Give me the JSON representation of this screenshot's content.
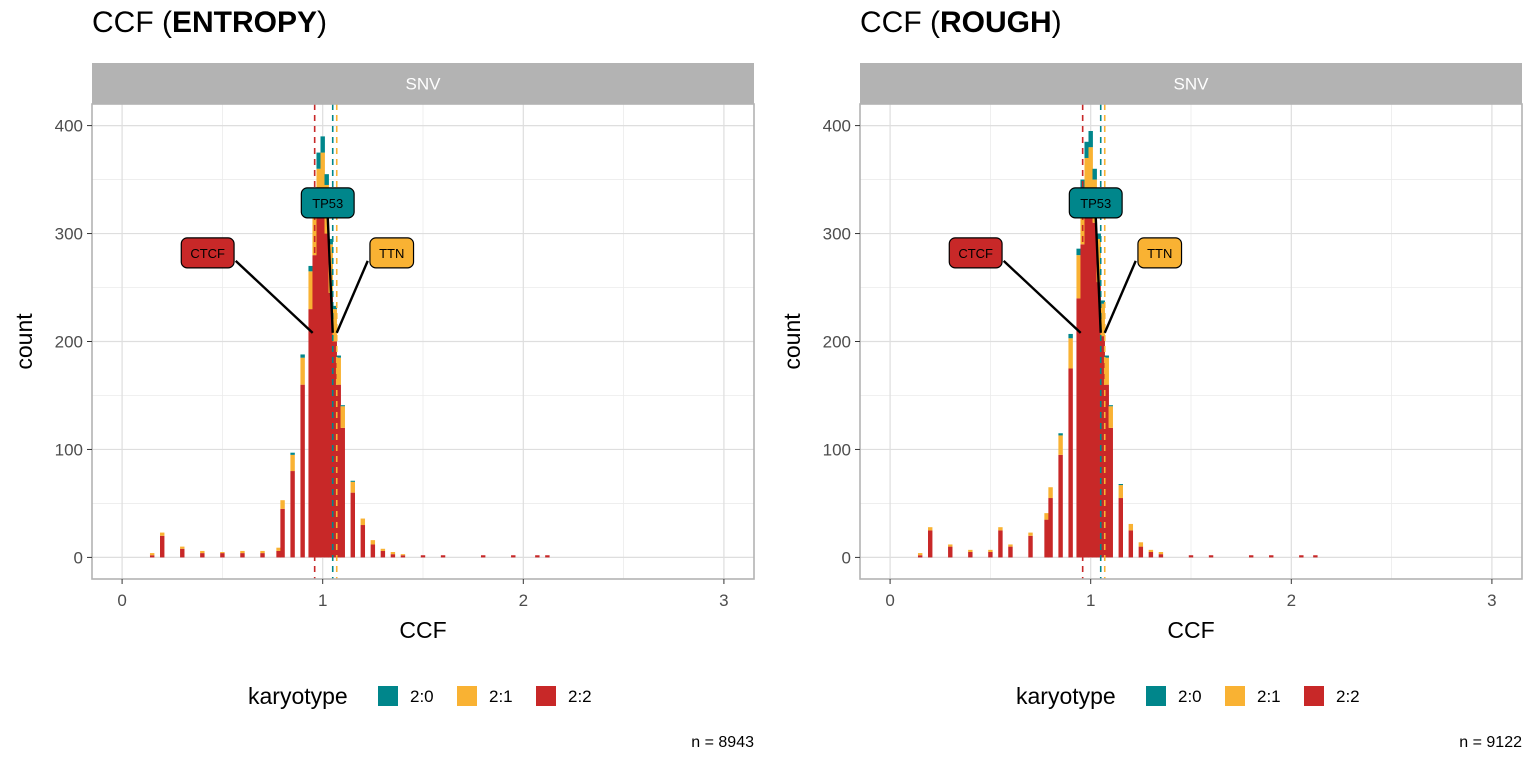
{
  "colors": {
    "2:0": "#00868B",
    "2:1": "#F9B233",
    "2:2": "#C82828",
    "strip": "#B3B3B3",
    "grid": "#EBEBEB",
    "frame": "#B3B3B3"
  },
  "panels": [
    {
      "title_prefix": "CCF (",
      "title_bold": "ENTROPY",
      "title_suffix": ")",
      "footnote": "n = 8943"
    },
    {
      "title_prefix": "CCF (",
      "title_bold": "ROUGH",
      "title_suffix": ")",
      "footnote": "n = 9122"
    }
  ],
  "chart_data": [
    {
      "type": "histogram",
      "title": "CCF (ENTROPY)",
      "facet": "SNV",
      "xlabel": "CCF",
      "ylabel": "count",
      "xlim": [
        -0.15,
        3.15
      ],
      "ylim": [
        -20,
        420
      ],
      "xticks": [
        0,
        1,
        2,
        3
      ],
      "yticks": [
        0,
        100,
        200,
        300,
        400
      ],
      "stacked": true,
      "series_order": [
        "2:2",
        "2:1",
        "2:0"
      ],
      "bin_width": 0.01,
      "bins": {
        "x": [
          0.15,
          0.2,
          0.3,
          0.4,
          0.5,
          0.6,
          0.7,
          0.78,
          0.8,
          0.85,
          0.9,
          0.94,
          0.96,
          0.98,
          1.0,
          1.02,
          1.04,
          1.06,
          1.08,
          1.1,
          1.15,
          1.2,
          1.25,
          1.3,
          1.35,
          1.4,
          1.5,
          1.6,
          1.8,
          1.95,
          2.07,
          2.12
        ],
        "2:2": [
          2,
          20,
          8,
          4,
          4,
          4,
          4,
          6,
          45,
          80,
          160,
          230,
          280,
          320,
          330,
          300,
          245,
          200,
          160,
          120,
          60,
          30,
          12,
          6,
          3,
          2,
          2,
          2,
          2,
          2,
          2,
          2
        ],
        "2:1": [
          2,
          3,
          2,
          2,
          1,
          2,
          2,
          3,
          8,
          15,
          25,
          35,
          50,
          40,
          45,
          45,
          45,
          30,
          25,
          20,
          10,
          6,
          4,
          2,
          2,
          1,
          0,
          0,
          0,
          0,
          0,
          0
        ],
        "2:0": [
          0,
          0,
          0,
          0,
          0,
          0,
          0,
          0,
          0,
          2,
          3,
          5,
          10,
          15,
          15,
          10,
          5,
          3,
          2,
          1,
          1,
          0,
          0,
          0,
          0,
          0,
          0,
          0,
          0,
          0,
          0,
          0
        ]
      },
      "vlines": [
        {
          "karyotype": "2:2",
          "x": 0.96
        },
        {
          "karyotype": "2:0",
          "x": 1.05
        },
        {
          "karyotype": "2:1",
          "x": 1.07
        }
      ],
      "annotations": [
        {
          "label": "CTCF",
          "karyotype": "2:2",
          "x": 0.95,
          "y": 208
        },
        {
          "label": "TP53",
          "karyotype": "2:0",
          "x": 1.05,
          "y": 208
        },
        {
          "label": "TTN",
          "karyotype": "2:1",
          "x": 1.07,
          "y": 208
        }
      ],
      "legend": {
        "title": "karyotype",
        "entries": [
          "2:0",
          "2:1",
          "2:2"
        ],
        "position": "bottom"
      }
    },
    {
      "type": "histogram",
      "title": "CCF (ROUGH)",
      "facet": "SNV",
      "xlabel": "CCF",
      "ylabel": "count",
      "xlim": [
        -0.15,
        3.15
      ],
      "ylim": [
        -20,
        420
      ],
      "xticks": [
        0,
        1,
        2,
        3
      ],
      "yticks": [
        0,
        100,
        200,
        300,
        400
      ],
      "stacked": true,
      "series_order": [
        "2:2",
        "2:1",
        "2:0"
      ],
      "bin_width": 0.01,
      "bins": {
        "x": [
          0.15,
          0.2,
          0.3,
          0.4,
          0.5,
          0.55,
          0.6,
          0.7,
          0.78,
          0.8,
          0.85,
          0.9,
          0.94,
          0.96,
          0.98,
          1.0,
          1.02,
          1.04,
          1.06,
          1.08,
          1.1,
          1.15,
          1.2,
          1.25,
          1.3,
          1.35,
          1.5,
          1.6,
          1.8,
          1.9,
          2.05,
          2.12
        ],
        "2:2": [
          2,
          25,
          10,
          5,
          5,
          25,
          10,
          20,
          35,
          55,
          95,
          175,
          240,
          290,
          330,
          335,
          310,
          255,
          205,
          160,
          120,
          55,
          25,
          10,
          5,
          3,
          2,
          2,
          2,
          2,
          2,
          2
        ],
        "2:1": [
          2,
          3,
          2,
          2,
          2,
          3,
          2,
          3,
          6,
          10,
          18,
          28,
          40,
          50,
          40,
          45,
          40,
          40,
          30,
          25,
          20,
          12,
          6,
          4,
          2,
          2,
          0,
          0,
          0,
          0,
          0,
          0
        ],
        "2:0": [
          0,
          0,
          0,
          0,
          0,
          0,
          0,
          0,
          0,
          0,
          2,
          4,
          6,
          10,
          15,
          15,
          10,
          5,
          3,
          2,
          1,
          1,
          0,
          0,
          0,
          0,
          0,
          0,
          0,
          0,
          0,
          0
        ]
      },
      "vlines": [
        {
          "karyotype": "2:2",
          "x": 0.96
        },
        {
          "karyotype": "2:0",
          "x": 1.05
        },
        {
          "karyotype": "2:1",
          "x": 1.07
        }
      ],
      "annotations": [
        {
          "label": "CTCF",
          "karyotype": "2:2",
          "x": 0.95,
          "y": 208
        },
        {
          "label": "TP53",
          "karyotype": "2:0",
          "x": 1.05,
          "y": 208
        },
        {
          "label": "TTN",
          "karyotype": "2:1",
          "x": 1.07,
          "y": 208
        }
      ],
      "legend": {
        "title": "karyotype",
        "entries": [
          "2:0",
          "2:1",
          "2:2"
        ],
        "position": "bottom"
      }
    }
  ]
}
